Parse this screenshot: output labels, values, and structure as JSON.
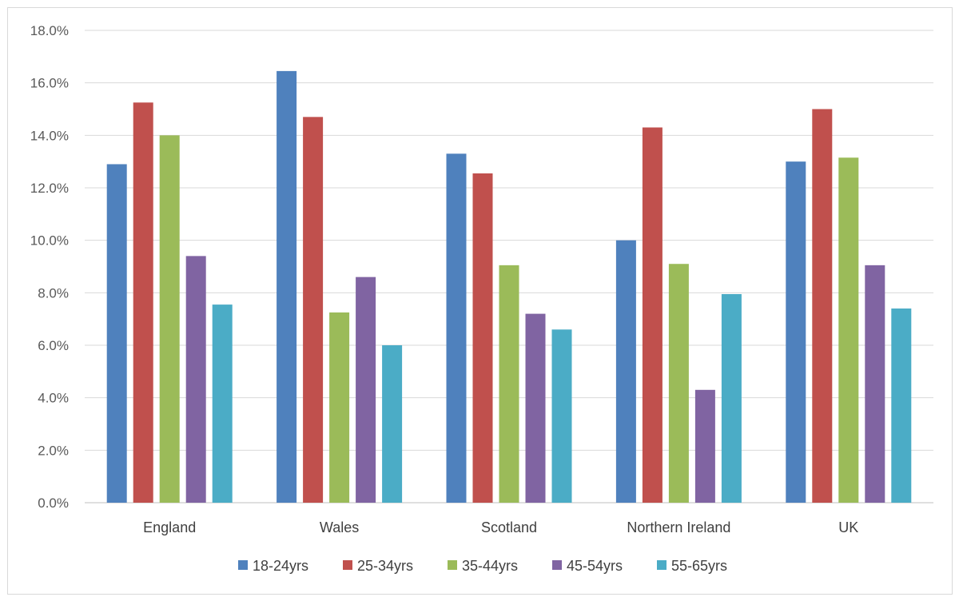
{
  "chart_data": {
    "type": "bar",
    "categories": [
      "England",
      "Wales",
      "Scotland",
      "Northern Ireland",
      "UK"
    ],
    "series": [
      {
        "name": "18-24yrs",
        "color": "#4f81bd",
        "values": [
          12.9,
          16.45,
          13.3,
          10.0,
          13.0
        ]
      },
      {
        "name": "25-34yrs",
        "color": "#c0504d",
        "values": [
          15.25,
          14.7,
          12.55,
          14.3,
          15.0
        ]
      },
      {
        "name": "35-44yrs",
        "color": "#9bbb59",
        "values": [
          14.0,
          7.25,
          9.05,
          9.1,
          13.15
        ]
      },
      {
        "name": "45-54yrs",
        "color": "#8064a2",
        "values": [
          9.4,
          8.6,
          7.2,
          4.3,
          9.05
        ]
      },
      {
        "name": "55-65yrs",
        "color": "#4bacc6",
        "values": [
          7.55,
          6.0,
          6.6,
          7.95,
          7.4
        ]
      }
    ],
    "ylim": [
      0,
      18
    ],
    "yticks": [
      "0.0%",
      "2.0%",
      "4.0%",
      "6.0%",
      "8.0%",
      "10.0%",
      "12.0%",
      "14.0%",
      "16.0%",
      "18.0%"
    ],
    "grid": true,
    "legend_position": "bottom"
  }
}
